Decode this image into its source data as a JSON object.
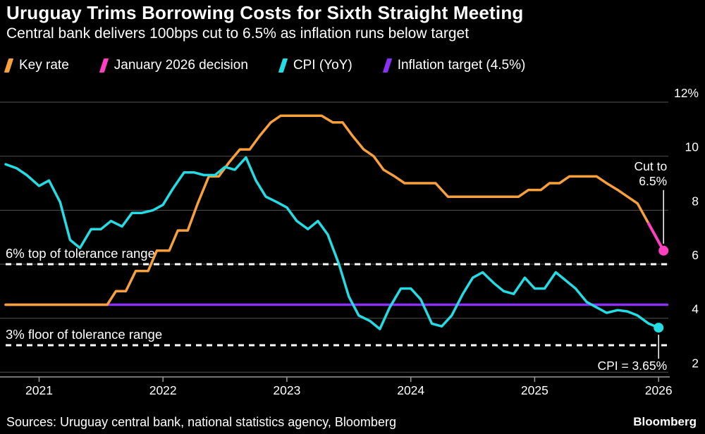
{
  "header": {
    "title": "Uruguay Trims Borrowing Costs for Sixth Straight Meeting",
    "subtitle": "Central bank delivers 100bps cut to 6.5% as inflation runs below target"
  },
  "chart_data": {
    "type": "line",
    "title": "Uruguay Trims Borrowing Costs for Sixth Straight Meeting",
    "subtitle": "Central bank delivers 100bps cut to 6.5% as inflation runs below target",
    "background": "#000000",
    "grid": true,
    "legend_position": "top",
    "xlim": [
      2020.73,
      2026.09
    ],
    "ylim": [
      1.5,
      12.4
    ],
    "x_ticks": [
      {
        "value": 2021,
        "label": "2021"
      },
      {
        "value": 2022,
        "label": "2022"
      },
      {
        "value": 2023,
        "label": "2023"
      },
      {
        "value": 2024,
        "label": "2024"
      },
      {
        "value": 2025,
        "label": "2025"
      },
      {
        "value": 2026,
        "label": "2026"
      }
    ],
    "y_ticks": [
      {
        "value": 12,
        "label": "12%"
      },
      {
        "value": 10,
        "label": "10"
      },
      {
        "value": 8,
        "label": "8"
      },
      {
        "value": 6,
        "label": "6"
      },
      {
        "value": 4,
        "label": "4"
      },
      {
        "value": 2,
        "label": "2"
      }
    ],
    "legend": [
      {
        "label": "Key rate",
        "color": "#F8A13C"
      },
      {
        "label": "January 2026 decision",
        "color": "#FF3EC0"
      },
      {
        "label": "CPI (YoY)",
        "color": "#23DCE4"
      },
      {
        "label": "Inflation target (4.5%)",
        "color": "#8B30F5"
      }
    ],
    "series": [
      {
        "name": "Key rate",
        "color": "#F8A13C",
        "width": 3.5,
        "end_dot": false,
        "points": [
          [
            2020.73,
            4.5
          ],
          [
            2021.55,
            4.5
          ],
          [
            2021.62,
            5.0
          ],
          [
            2021.7,
            5.0
          ],
          [
            2021.78,
            5.75
          ],
          [
            2021.88,
            5.75
          ],
          [
            2021.95,
            6.5
          ],
          [
            2022.05,
            6.5
          ],
          [
            2022.12,
            7.25
          ],
          [
            2022.2,
            7.25
          ],
          [
            2022.28,
            8.25
          ],
          [
            2022.37,
            9.25
          ],
          [
            2022.45,
            9.25
          ],
          [
            2022.53,
            9.75
          ],
          [
            2022.62,
            10.25
          ],
          [
            2022.7,
            10.25
          ],
          [
            2022.78,
            10.75
          ],
          [
            2022.87,
            11.25
          ],
          [
            2022.95,
            11.5
          ],
          [
            2023.28,
            11.5
          ],
          [
            2023.37,
            11.25
          ],
          [
            2023.45,
            11.25
          ],
          [
            2023.53,
            10.75
          ],
          [
            2023.62,
            10.25
          ],
          [
            2023.7,
            10.0
          ],
          [
            2023.78,
            9.5
          ],
          [
            2023.87,
            9.25
          ],
          [
            2023.95,
            9.0
          ],
          [
            2024.2,
            9.0
          ],
          [
            2024.3,
            8.5
          ],
          [
            2024.87,
            8.5
          ],
          [
            2024.95,
            8.75
          ],
          [
            2025.05,
            8.75
          ],
          [
            2025.12,
            9.0
          ],
          [
            2025.2,
            9.0
          ],
          [
            2025.28,
            9.25
          ],
          [
            2025.5,
            9.25
          ],
          [
            2025.58,
            9.0
          ],
          [
            2025.67,
            8.75
          ],
          [
            2025.75,
            8.5
          ],
          [
            2025.83,
            8.25
          ],
          [
            2025.92,
            7.5
          ]
        ]
      },
      {
        "name": "January 2026 decision",
        "color": "#FF3EC0",
        "width": 4,
        "end_dot": true,
        "points": [
          [
            2025.92,
            7.5
          ],
          [
            2026.04,
            6.5
          ]
        ]
      },
      {
        "name": "CPI (YoY)",
        "color": "#23DCE4",
        "width": 3.5,
        "end_dot": true,
        "points": [
          [
            2020.73,
            9.7
          ],
          [
            2020.82,
            9.55
          ],
          [
            2020.9,
            9.3
          ],
          [
            2021.0,
            8.9
          ],
          [
            2021.08,
            9.1
          ],
          [
            2021.17,
            8.3
          ],
          [
            2021.25,
            6.9
          ],
          [
            2021.33,
            6.6
          ],
          [
            2021.42,
            7.3
          ],
          [
            2021.5,
            7.3
          ],
          [
            2021.58,
            7.6
          ],
          [
            2021.67,
            7.4
          ],
          [
            2021.75,
            7.9
          ],
          [
            2021.83,
            7.9
          ],
          [
            2021.92,
            8.0
          ],
          [
            2022.0,
            8.2
          ],
          [
            2022.08,
            8.8
          ],
          [
            2022.17,
            9.4
          ],
          [
            2022.25,
            9.4
          ],
          [
            2022.33,
            9.3
          ],
          [
            2022.42,
            9.3
          ],
          [
            2022.5,
            9.6
          ],
          [
            2022.58,
            9.5
          ],
          [
            2022.67,
            9.95
          ],
          [
            2022.75,
            9.1
          ],
          [
            2022.83,
            8.5
          ],
          [
            2022.92,
            8.3
          ],
          [
            2023.0,
            8.1
          ],
          [
            2023.08,
            7.6
          ],
          [
            2023.17,
            7.3
          ],
          [
            2023.25,
            7.6
          ],
          [
            2023.33,
            7.1
          ],
          [
            2023.42,
            6.0
          ],
          [
            2023.5,
            4.8
          ],
          [
            2023.58,
            4.1
          ],
          [
            2023.67,
            3.9
          ],
          [
            2023.75,
            3.6
          ],
          [
            2023.83,
            4.4
          ],
          [
            2023.92,
            5.1
          ],
          [
            2024.0,
            5.1
          ],
          [
            2024.08,
            4.7
          ],
          [
            2024.17,
            3.8
          ],
          [
            2024.25,
            3.7
          ],
          [
            2024.33,
            4.1
          ],
          [
            2024.42,
            4.9
          ],
          [
            2024.5,
            5.5
          ],
          [
            2024.58,
            5.7
          ],
          [
            2024.67,
            5.3
          ],
          [
            2024.75,
            5.0
          ],
          [
            2024.83,
            4.9
          ],
          [
            2024.92,
            5.5
          ],
          [
            2025.0,
            5.1
          ],
          [
            2025.08,
            5.1
          ],
          [
            2025.17,
            5.7
          ],
          [
            2025.25,
            5.4
          ],
          [
            2025.33,
            5.1
          ],
          [
            2025.42,
            4.6
          ],
          [
            2025.5,
            4.4
          ],
          [
            2025.58,
            4.2
          ],
          [
            2025.67,
            4.3
          ],
          [
            2025.75,
            4.25
          ],
          [
            2025.83,
            4.1
          ],
          [
            2025.92,
            3.8
          ],
          [
            2026.0,
            3.65
          ]
        ]
      },
      {
        "name": "Inflation target (4.5%)",
        "color": "#8B30F5",
        "width": 3.5,
        "end_dot": false,
        "points": [
          [
            2020.73,
            4.5
          ],
          [
            2026.07,
            4.5
          ]
        ]
      }
    ],
    "reference_lines": [
      {
        "value": 6,
        "label": "6% top of tolerance range",
        "style": "dashed",
        "color": "#FFFFFF"
      },
      {
        "value": 3,
        "label": "3% floor of tolerance range",
        "style": "dashed",
        "color": "#FFFFFF"
      }
    ],
    "annotations": [
      {
        "lines": [
          "Cut to",
          "6.5%"
        ],
        "x": 2026.04,
        "y": 6.5,
        "placement": "above"
      },
      {
        "lines": [
          "CPI = 3.65%"
        ],
        "x": 2026.0,
        "y": 3.65,
        "placement": "below"
      }
    ]
  },
  "footer": {
    "sources": "Sources: Uruguay central bank, national statistics agency, Bloomberg",
    "brand": "Bloomberg"
  }
}
